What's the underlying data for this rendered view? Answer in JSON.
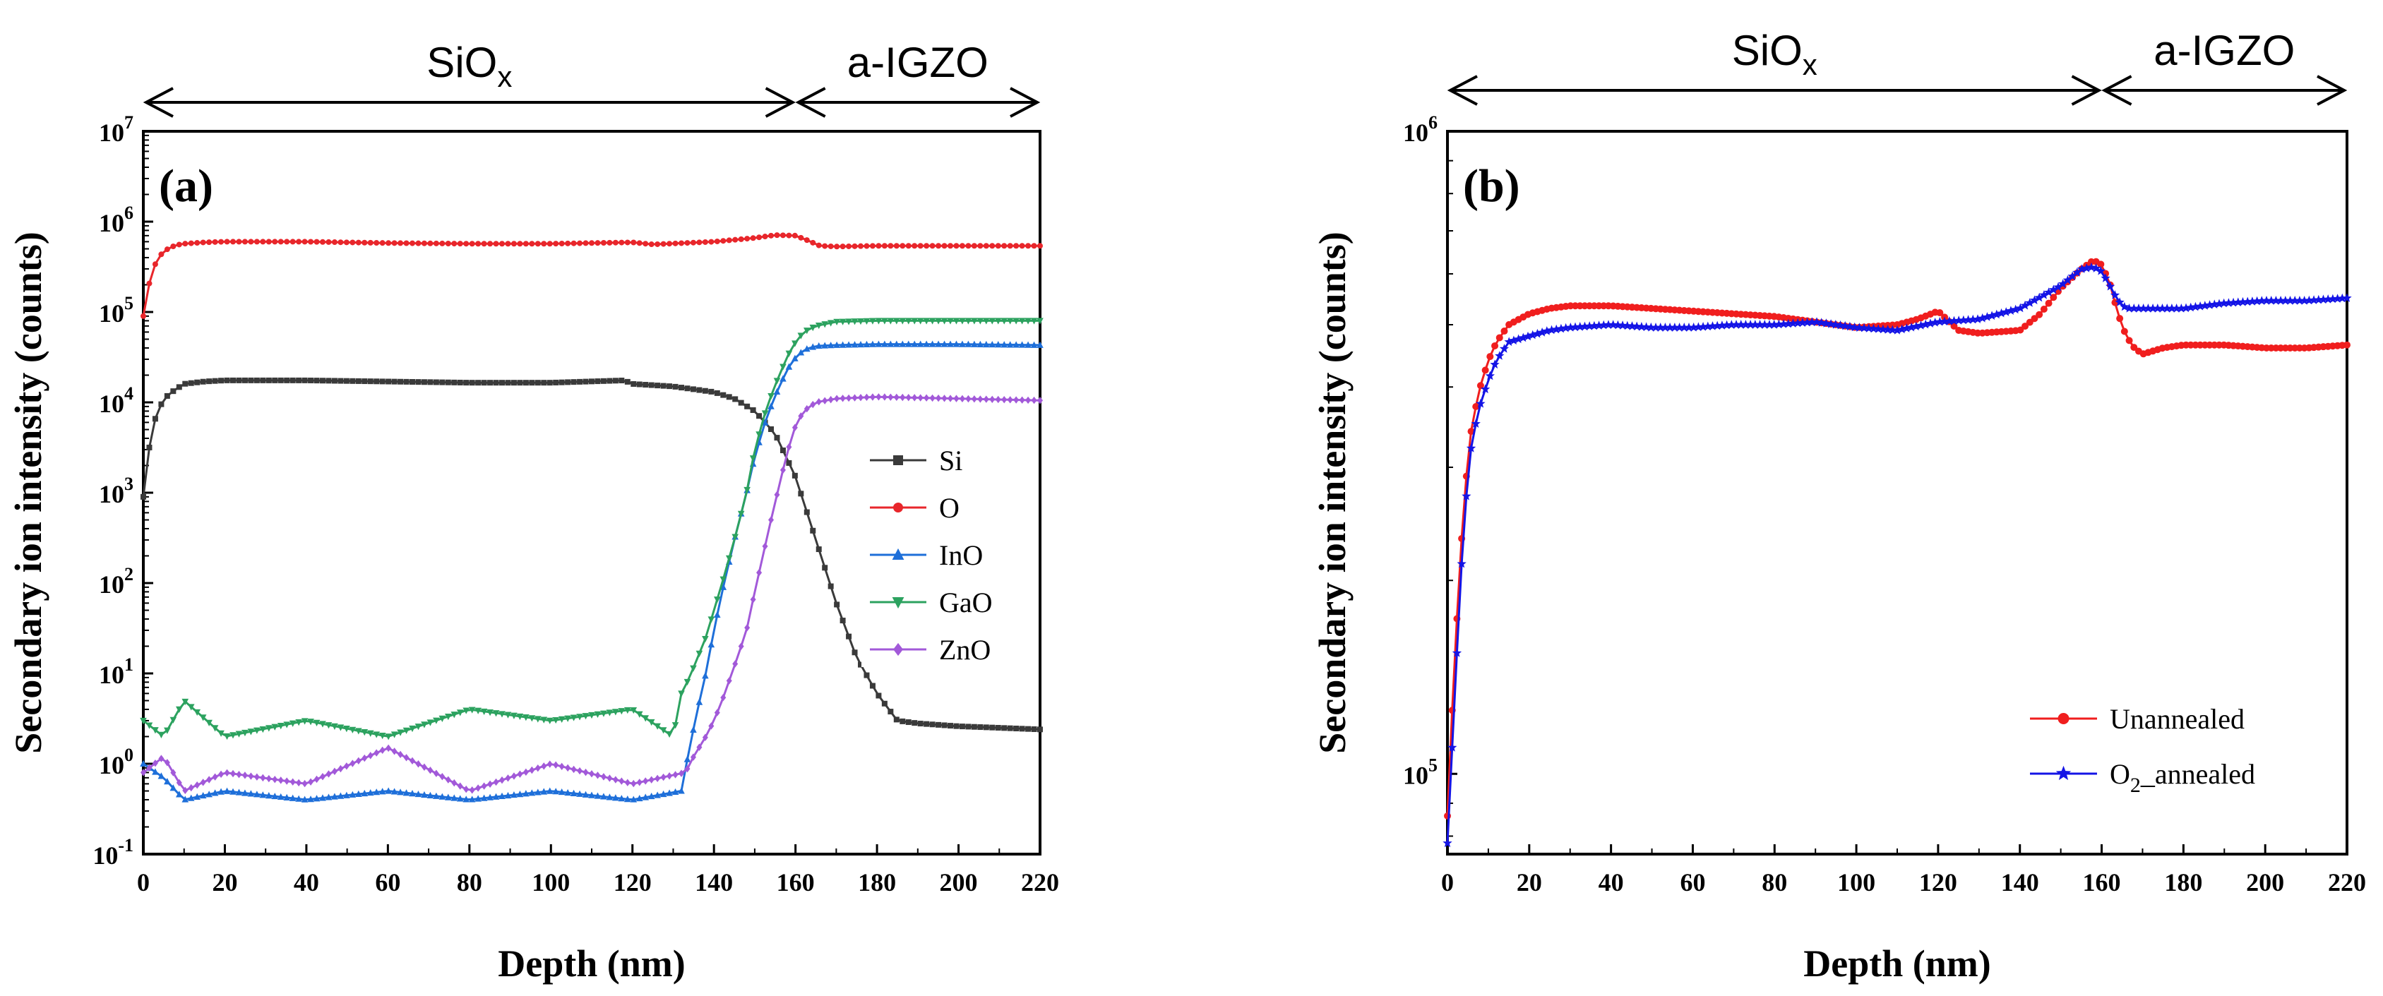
{
  "chart_data": [
    {
      "panel": "(a)",
      "type": "line",
      "yscale": "log",
      "xlabel": "Depth (nm)",
      "ylabel": "Secondary ion intensity (counts)",
      "xlim": [
        0,
        220
      ],
      "ylim": [
        0.1,
        10000000
      ],
      "xticks": [
        0,
        20,
        40,
        60,
        80,
        100,
        120,
        140,
        160,
        180,
        200,
        220
      ],
      "yticks": [
        {
          "value": 0.1,
          "base": "10",
          "exp": "-1"
        },
        {
          "value": 1,
          "base": "10",
          "exp": "0"
        },
        {
          "value": 10,
          "base": "10",
          "exp": "1"
        },
        {
          "value": 100,
          "base": "10",
          "exp": "2"
        },
        {
          "value": 1000,
          "base": "10",
          "exp": "3"
        },
        {
          "value": 10000,
          "base": "10",
          "exp": "4"
        },
        {
          "value": 100000,
          "base": "10",
          "exp": "5"
        },
        {
          "value": 1000000,
          "base": "10",
          "exp": "6"
        },
        {
          "value": 10000000,
          "base": "10",
          "exp": "7"
        }
      ],
      "regions": [
        {
          "label_main": "SiO",
          "label_sub": "x",
          "from": 0,
          "to": 160
        },
        {
          "label_main": "a-IGZO",
          "label_sub": "",
          "from": 160,
          "to": 220
        }
      ],
      "legend_position": "right-middle",
      "series": [
        {
          "name": "Si",
          "color": "#3a3a3a",
          "marker": "square",
          "x": [
            0,
            2,
            4,
            6,
            8,
            10,
            15,
            20,
            30,
            40,
            60,
            80,
            100,
            118,
            120,
            130,
            140,
            145,
            150,
            155,
            160,
            165,
            170,
            175,
            180,
            185,
            190,
            200,
            210,
            220
          ],
          "y": [
            900,
            5000,
            9000,
            12000,
            14000,
            16000,
            17000,
            17500,
            17500,
            17500,
            17000,
            16500,
            16500,
            17500,
            16000,
            15000,
            13000,
            11000,
            8000,
            4500,
            1500,
            300,
            60,
            15,
            6,
            3,
            2.8,
            2.6,
            2.5,
            2.4
          ]
        },
        {
          "name": "O",
          "color": "#e8262b",
          "marker": "circle",
          "x": [
            0,
            2,
            4,
            6,
            8,
            10,
            15,
            20,
            40,
            60,
            80,
            100,
            120,
            125,
            140,
            150,
            155,
            160,
            163,
            166,
            170,
            180,
            200,
            220
          ],
          "y": [
            90000,
            280000,
            420000,
            500000,
            550000,
            570000,
            590000,
            600000,
            600000,
            580000,
            570000,
            570000,
            590000,
            560000,
            600000,
            660000,
            710000,
            700000,
            620000,
            540000,
            530000,
            540000,
            540000,
            540000
          ]
        },
        {
          "name": "InO",
          "color": "#1e6fd9",
          "marker": "triangle-up",
          "x": [
            0,
            5,
            10,
            20,
            40,
            60,
            80,
            100,
            120,
            132,
            134,
            136,
            138,
            140,
            142,
            145,
            148,
            150,
            153,
            156,
            159,
            162,
            165,
            170,
            180,
            200,
            220
          ],
          "y": [
            1,
            0.7,
            0.4,
            0.5,
            0.4,
            0.5,
            0.4,
            0.5,
            0.4,
            0.5,
            1.5,
            4,
            10,
            30,
            80,
            300,
            1000,
            2500,
            7000,
            15000,
            28000,
            38000,
            42000,
            43000,
            44000,
            44000,
            43000
          ]
        },
        {
          "name": "GaO",
          "color": "#2ca25f",
          "marker": "triangle-down",
          "x": [
            0,
            5,
            10,
            20,
            40,
            60,
            80,
            100,
            120,
            130,
            132,
            134,
            136,
            138,
            140,
            142,
            145,
            148,
            150,
            153,
            156,
            159,
            162,
            165,
            170,
            180,
            200,
            220
          ],
          "y": [
            3,
            2,
            5,
            2,
            3,
            2,
            4,
            3,
            4,
            2,
            6,
            9,
            15,
            25,
            50,
            100,
            300,
            1000,
            3000,
            9000,
            20000,
            40000,
            60000,
            70000,
            78000,
            80000,
            80000,
            80000
          ]
        },
        {
          "name": "ZnO",
          "color": "#a259d9",
          "marker": "diamond",
          "x": [
            0,
            5,
            10,
            20,
            40,
            60,
            80,
            100,
            120,
            133,
            135,
            138,
            140,
            142,
            145,
            148,
            150,
            152,
            154,
            156,
            158,
            160,
            162,
            165,
            170,
            180,
            200,
            220
          ],
          "y": [
            0.8,
            1.2,
            0.5,
            0.8,
            0.6,
            1.5,
            0.5,
            1,
            0.6,
            0.8,
            1.2,
            2,
            3,
            5,
            12,
            30,
            80,
            200,
            500,
            1200,
            2800,
            5500,
            8000,
            10000,
            11000,
            11500,
            11000,
            10500
          ]
        }
      ]
    },
    {
      "panel": "(b)",
      "type": "line",
      "yscale": "log",
      "xlabel": "Depth (nm)",
      "ylabel": "Secondary ion intensity (counts)",
      "xlim": [
        0,
        220
      ],
      "ylim": [
        75000,
        1000000
      ],
      "xticks": [
        0,
        20,
        40,
        60,
        80,
        100,
        120,
        140,
        160,
        180,
        200,
        220
      ],
      "yticks": [
        {
          "value": 100000,
          "base": "10",
          "exp": "5"
        },
        {
          "value": 1000000,
          "base": "10",
          "exp": "6"
        }
      ],
      "regions": [
        {
          "label_main": "SiO",
          "label_sub": "x",
          "from": 0,
          "to": 160
        },
        {
          "label_main": "a-IGZO",
          "label_sub": "",
          "from": 160,
          "to": 220
        }
      ],
      "legend_position": "bottom-right",
      "series": [
        {
          "name": "Unannealed",
          "name_main": "Unannealed",
          "name_sub": "",
          "name_tail": "",
          "color": "#f01e1e",
          "marker": "circle",
          "x": [
            0,
            1,
            2,
            3,
            4,
            5,
            6,
            8,
            10,
            12,
            15,
            20,
            25,
            30,
            40,
            50,
            60,
            70,
            80,
            90,
            100,
            110,
            115,
            120,
            125,
            130,
            140,
            145,
            150,
            155,
            158,
            160,
            162,
            164,
            166,
            168,
            170,
            175,
            180,
            190,
            200,
            210,
            220
          ],
          "y": [
            86000,
            120000,
            160000,
            210000,
            260000,
            310000,
            350000,
            400000,
            440000,
            470000,
            500000,
            520000,
            530000,
            535000,
            535000,
            530000,
            525000,
            520000,
            515000,
            505000,
            495000,
            500000,
            510000,
            525000,
            490000,
            485000,
            490000,
            520000,
            570000,
            610000,
            630000,
            620000,
            580000,
            520000,
            480000,
            460000,
            450000,
            460000,
            465000,
            465000,
            460000,
            460000,
            465000
          ]
        },
        {
          "name": "O2_annealed",
          "name_main": "O",
          "name_sub": "2",
          "name_tail": "_annealed",
          "color": "#1414e6",
          "marker": "star",
          "x": [
            0,
            1,
            2,
            3,
            4,
            5,
            6,
            8,
            10,
            12,
            15,
            20,
            25,
            30,
            40,
            50,
            60,
            70,
            80,
            90,
            100,
            110,
            120,
            130,
            140,
            150,
            155,
            158,
            160,
            162,
            164,
            166,
            170,
            180,
            190,
            200,
            210,
            220
          ],
          "y": [
            78000,
            105000,
            140000,
            190000,
            240000,
            290000,
            330000,
            375000,
            410000,
            440000,
            470000,
            480000,
            490000,
            495000,
            500000,
            495000,
            495000,
            500000,
            500000,
            505000,
            495000,
            490000,
            505000,
            510000,
            530000,
            575000,
            610000,
            615000,
            605000,
            575000,
            545000,
            530000,
            530000,
            530000,
            540000,
            545000,
            545000,
            550000
          ]
        }
      ]
    }
  ]
}
